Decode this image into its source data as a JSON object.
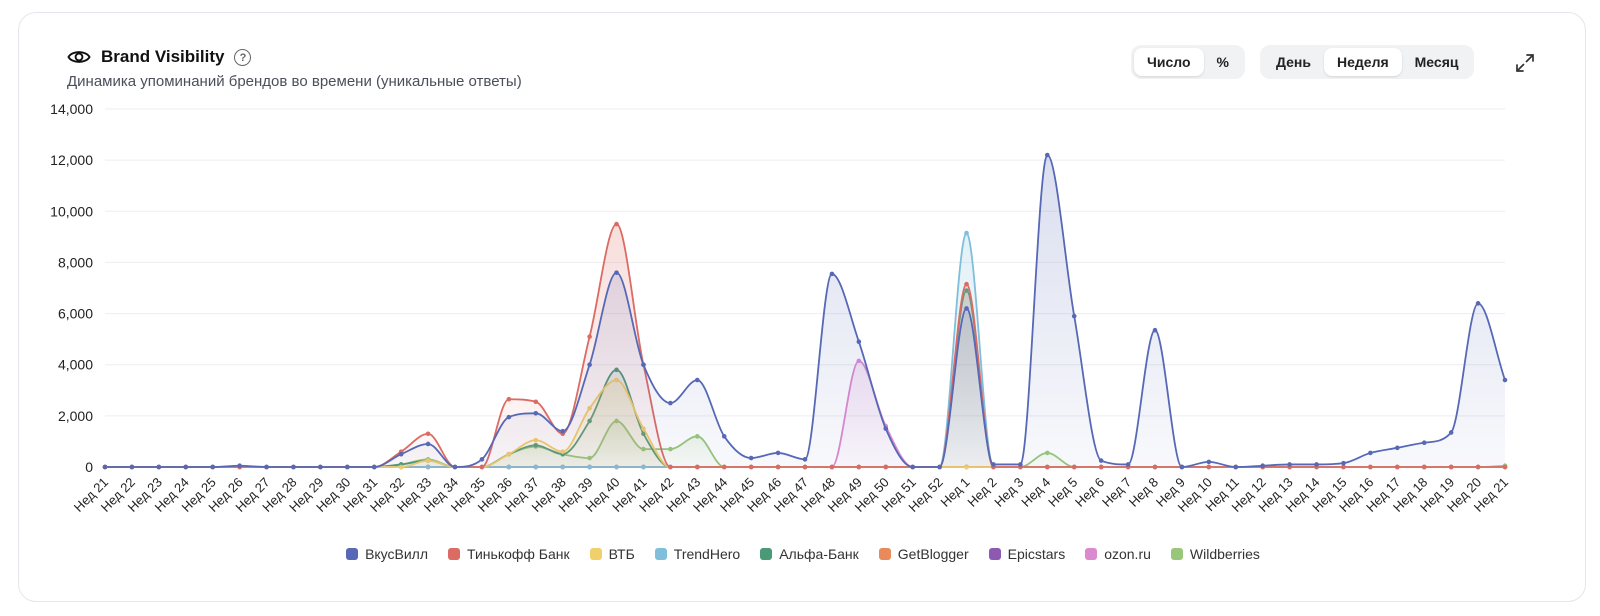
{
  "header": {
    "title": "Brand Visibility",
    "help_glyph": "?",
    "subtitle": "Динамика упоминаний брендов во времени (уникальные ответы)",
    "icon": "eye-icon"
  },
  "toggle_mode": {
    "options": [
      "Число",
      "%"
    ],
    "selected": "Число"
  },
  "toggle_period": {
    "options": [
      "День",
      "Неделя",
      "Месяц"
    ],
    "selected": "Неделя"
  },
  "chart_data": {
    "type": "area",
    "curve": "smooth",
    "ylim": [
      0,
      14000
    ],
    "yticks": [
      0,
      2000,
      4000,
      6000,
      8000,
      10000,
      12000,
      14000
    ],
    "ytick_labels": [
      "0",
      "2,000",
      "4,000",
      "6,000",
      "8,000",
      "10,000",
      "12,000",
      "14,000"
    ],
    "grid": true,
    "legend_position": "bottom",
    "categories": [
      "Нед 21",
      "Нед 22",
      "Нед 23",
      "Нед 24",
      "Нед 25",
      "Нед 26",
      "Нед 27",
      "Нед 28",
      "Нед 29",
      "Нед 30",
      "Нед 31",
      "Нед 32",
      "Нед 33",
      "Нед 34",
      "Нед 35",
      "Нед 36",
      "Нед 37",
      "Нед 38",
      "Нед 39",
      "Нед 40",
      "Нед 41",
      "Нед 42",
      "Нед 43",
      "Нед 44",
      "Нед 45",
      "Нед 46",
      "Нед 47",
      "Нед 48",
      "Нед 49",
      "Нед 50",
      "Нед 51",
      "Нед 52",
      "Нед 1",
      "Нед 2",
      "Нед 3",
      "Нед 4",
      "Нед 5",
      "Нед 6",
      "Нед 7",
      "Нед 8",
      "Нед 9",
      "Нед 10",
      "Нед 11",
      "Нед 12",
      "Нед 13",
      "Нед 14",
      "Нед 15",
      "Нед 16",
      "Нед 17",
      "Нед 18",
      "Нед 19",
      "Нед 20",
      "Нед 21"
    ],
    "series": [
      {
        "name": "ВкусВилл",
        "color": "#5668b6",
        "values": [
          0,
          0,
          0,
          0,
          0,
          50,
          0,
          0,
          0,
          0,
          0,
          500,
          900,
          0,
          300,
          1950,
          2100,
          1400,
          4000,
          7600,
          4000,
          2500,
          3400,
          1200,
          350,
          550,
          300,
          7550,
          4900,
          1500,
          0,
          0,
          6200,
          100,
          100,
          12200,
          5900,
          250,
          100,
          5350,
          0,
          200,
          0,
          50,
          100,
          100,
          150,
          550,
          750,
          950,
          1350,
          6400,
          3400
        ]
      },
      {
        "name": "Тинькофф Банк",
        "color": "#db6b63",
        "values": [
          0,
          0,
          0,
          0,
          0,
          0,
          0,
          0,
          0,
          0,
          0,
          600,
          1300,
          0,
          0,
          2650,
          2550,
          1300,
          5100,
          9500,
          4000,
          0,
          0,
          0,
          0,
          0,
          0,
          0,
          0,
          0,
          0,
          0,
          7150,
          0,
          0,
          0,
          0,
          0,
          0,
          0,
          0,
          0,
          0,
          0,
          0,
          0,
          0,
          0,
          0,
          0,
          0,
          0,
          0
        ]
      },
      {
        "name": "ВТБ",
        "color": "#f1cf6b",
        "values": [
          0,
          0,
          0,
          0,
          0,
          0,
          0,
          0,
          0,
          0,
          0,
          0,
          250,
          0,
          0,
          500,
          1050,
          600,
          2300,
          3400,
          1500,
          0,
          0,
          0,
          0,
          0,
          0,
          0,
          0,
          0,
          0,
          0,
          0,
          0,
          0,
          0,
          0,
          0,
          0,
          0,
          0,
          0,
          0,
          0,
          0,
          0,
          0,
          0,
          0,
          0,
          0,
          0,
          0
        ]
      },
      {
        "name": "TrendHero",
        "color": "#7fbfdc",
        "values": [
          0,
          0,
          0,
          0,
          0,
          0,
          0,
          0,
          0,
          0,
          0,
          0,
          0,
          0,
          0,
          0,
          0,
          0,
          0,
          0,
          0,
          0,
          0,
          0,
          0,
          0,
          0,
          0,
          0,
          0,
          0,
          0,
          9150,
          0,
          0,
          0,
          0,
          0,
          0,
          0,
          0,
          0,
          0,
          0,
          0,
          0,
          0,
          0,
          0,
          0,
          0,
          0,
          0
        ]
      },
      {
        "name": "Альфа-Банк",
        "color": "#4a9a77",
        "values": [
          0,
          0,
          0,
          0,
          0,
          0,
          0,
          0,
          0,
          0,
          0,
          100,
          250,
          0,
          0,
          500,
          850,
          500,
          1800,
          3800,
          1300,
          0,
          0,
          0,
          0,
          0,
          0,
          0,
          0,
          0,
          0,
          0,
          6900,
          0,
          0,
          0,
          0,
          0,
          0,
          0,
          0,
          0,
          0,
          0,
          0,
          0,
          0,
          0,
          0,
          0,
          0,
          0,
          0
        ]
      },
      {
        "name": "GetBlogger",
        "color": "#e88a5c",
        "values": [
          0,
          0,
          0,
          0,
          0,
          0,
          0,
          0,
          0,
          0,
          0,
          0,
          0,
          0,
          0,
          0,
          0,
          0,
          0,
          0,
          0,
          0,
          0,
          0,
          0,
          0,
          0,
          0,
          0,
          0,
          0,
          0,
          0,
          0,
          0,
          0,
          0,
          0,
          0,
          0,
          0,
          0,
          0,
          0,
          0,
          0,
          0,
          0,
          0,
          0,
          0,
          0,
          0
        ]
      },
      {
        "name": "Epicstars",
        "color": "#8e5ab1",
        "values": [
          0,
          0,
          0,
          0,
          0,
          0,
          0,
          0,
          0,
          0,
          0,
          0,
          0,
          0,
          0,
          0,
          0,
          0,
          0,
          0,
          0,
          0,
          0,
          0,
          0,
          0,
          0,
          0,
          0,
          0,
          0,
          0,
          0,
          0,
          0,
          0,
          0,
          0,
          0,
          0,
          0,
          0,
          0,
          0,
          0,
          0,
          0,
          0,
          0,
          0,
          0,
          0,
          0
        ]
      },
      {
        "name": "ozon.ru",
        "color": "#dc8ad0",
        "values": [
          0,
          0,
          0,
          0,
          0,
          0,
          0,
          0,
          0,
          0,
          0,
          0,
          0,
          0,
          0,
          0,
          0,
          0,
          0,
          0,
          0,
          0,
          0,
          0,
          0,
          0,
          0,
          0,
          4150,
          1600,
          0,
          0,
          0,
          0,
          0,
          0,
          0,
          0,
          0,
          0,
          0,
          0,
          0,
          0,
          0,
          0,
          0,
          0,
          0,
          0,
          0,
          0,
          0
        ]
      },
      {
        "name": "Wildberries",
        "color": "#98c77a",
        "values": [
          0,
          0,
          0,
          0,
          0,
          0,
          0,
          0,
          0,
          0,
          0,
          100,
          300,
          0,
          0,
          500,
          800,
          500,
          350,
          1800,
          700,
          700,
          1200,
          0,
          0,
          0,
          0,
          0,
          0,
          0,
          0,
          0,
          0,
          0,
          0,
          550,
          0,
          0,
          0,
          0,
          0,
          0,
          0,
          0,
          0,
          0,
          0,
          0,
          0,
          0,
          0,
          0,
          50
        ]
      }
    ]
  }
}
